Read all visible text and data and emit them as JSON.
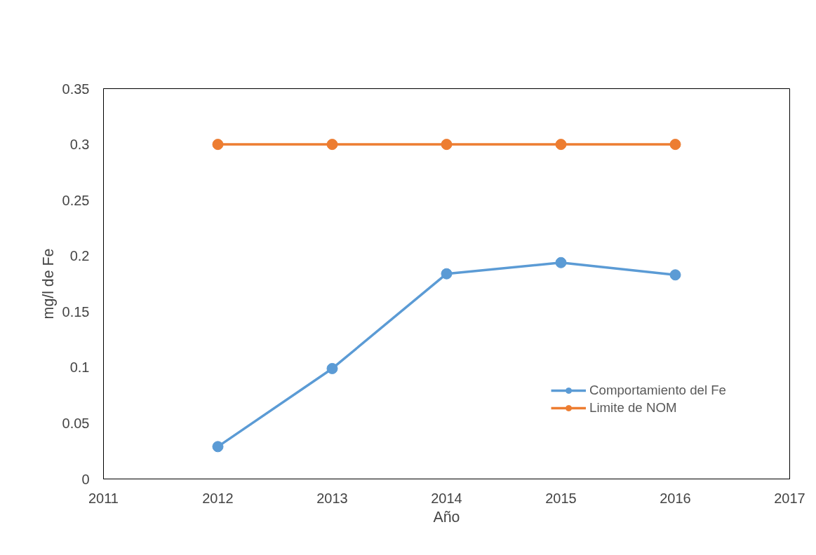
{
  "chart_data": {
    "type": "line",
    "xlabel": "Año",
    "ylabel": "mg/l de Fe",
    "x": [
      2012,
      2013,
      2014,
      2015,
      2016
    ],
    "series": [
      {
        "name": "Comportamiento del Fe",
        "color": "#5b9bd5",
        "values": [
          0.029,
          0.099,
          0.184,
          0.194,
          0.183
        ]
      },
      {
        "name": "Limite de NOM",
        "color": "#ed7d31",
        "values": [
          0.3,
          0.3,
          0.3,
          0.3,
          0.3
        ]
      }
    ],
    "xlim": [
      2011,
      2017
    ],
    "xticks": [
      2011,
      2012,
      2013,
      2014,
      2015,
      2016,
      2017
    ],
    "ylim": [
      0,
      0.35
    ],
    "yticks": [
      0,
      0.05,
      0.1,
      0.15,
      0.2,
      0.25,
      0.3,
      0.35
    ],
    "grid": false,
    "legend": "bottom right",
    "marker": "circle",
    "line_style": "solid"
  }
}
